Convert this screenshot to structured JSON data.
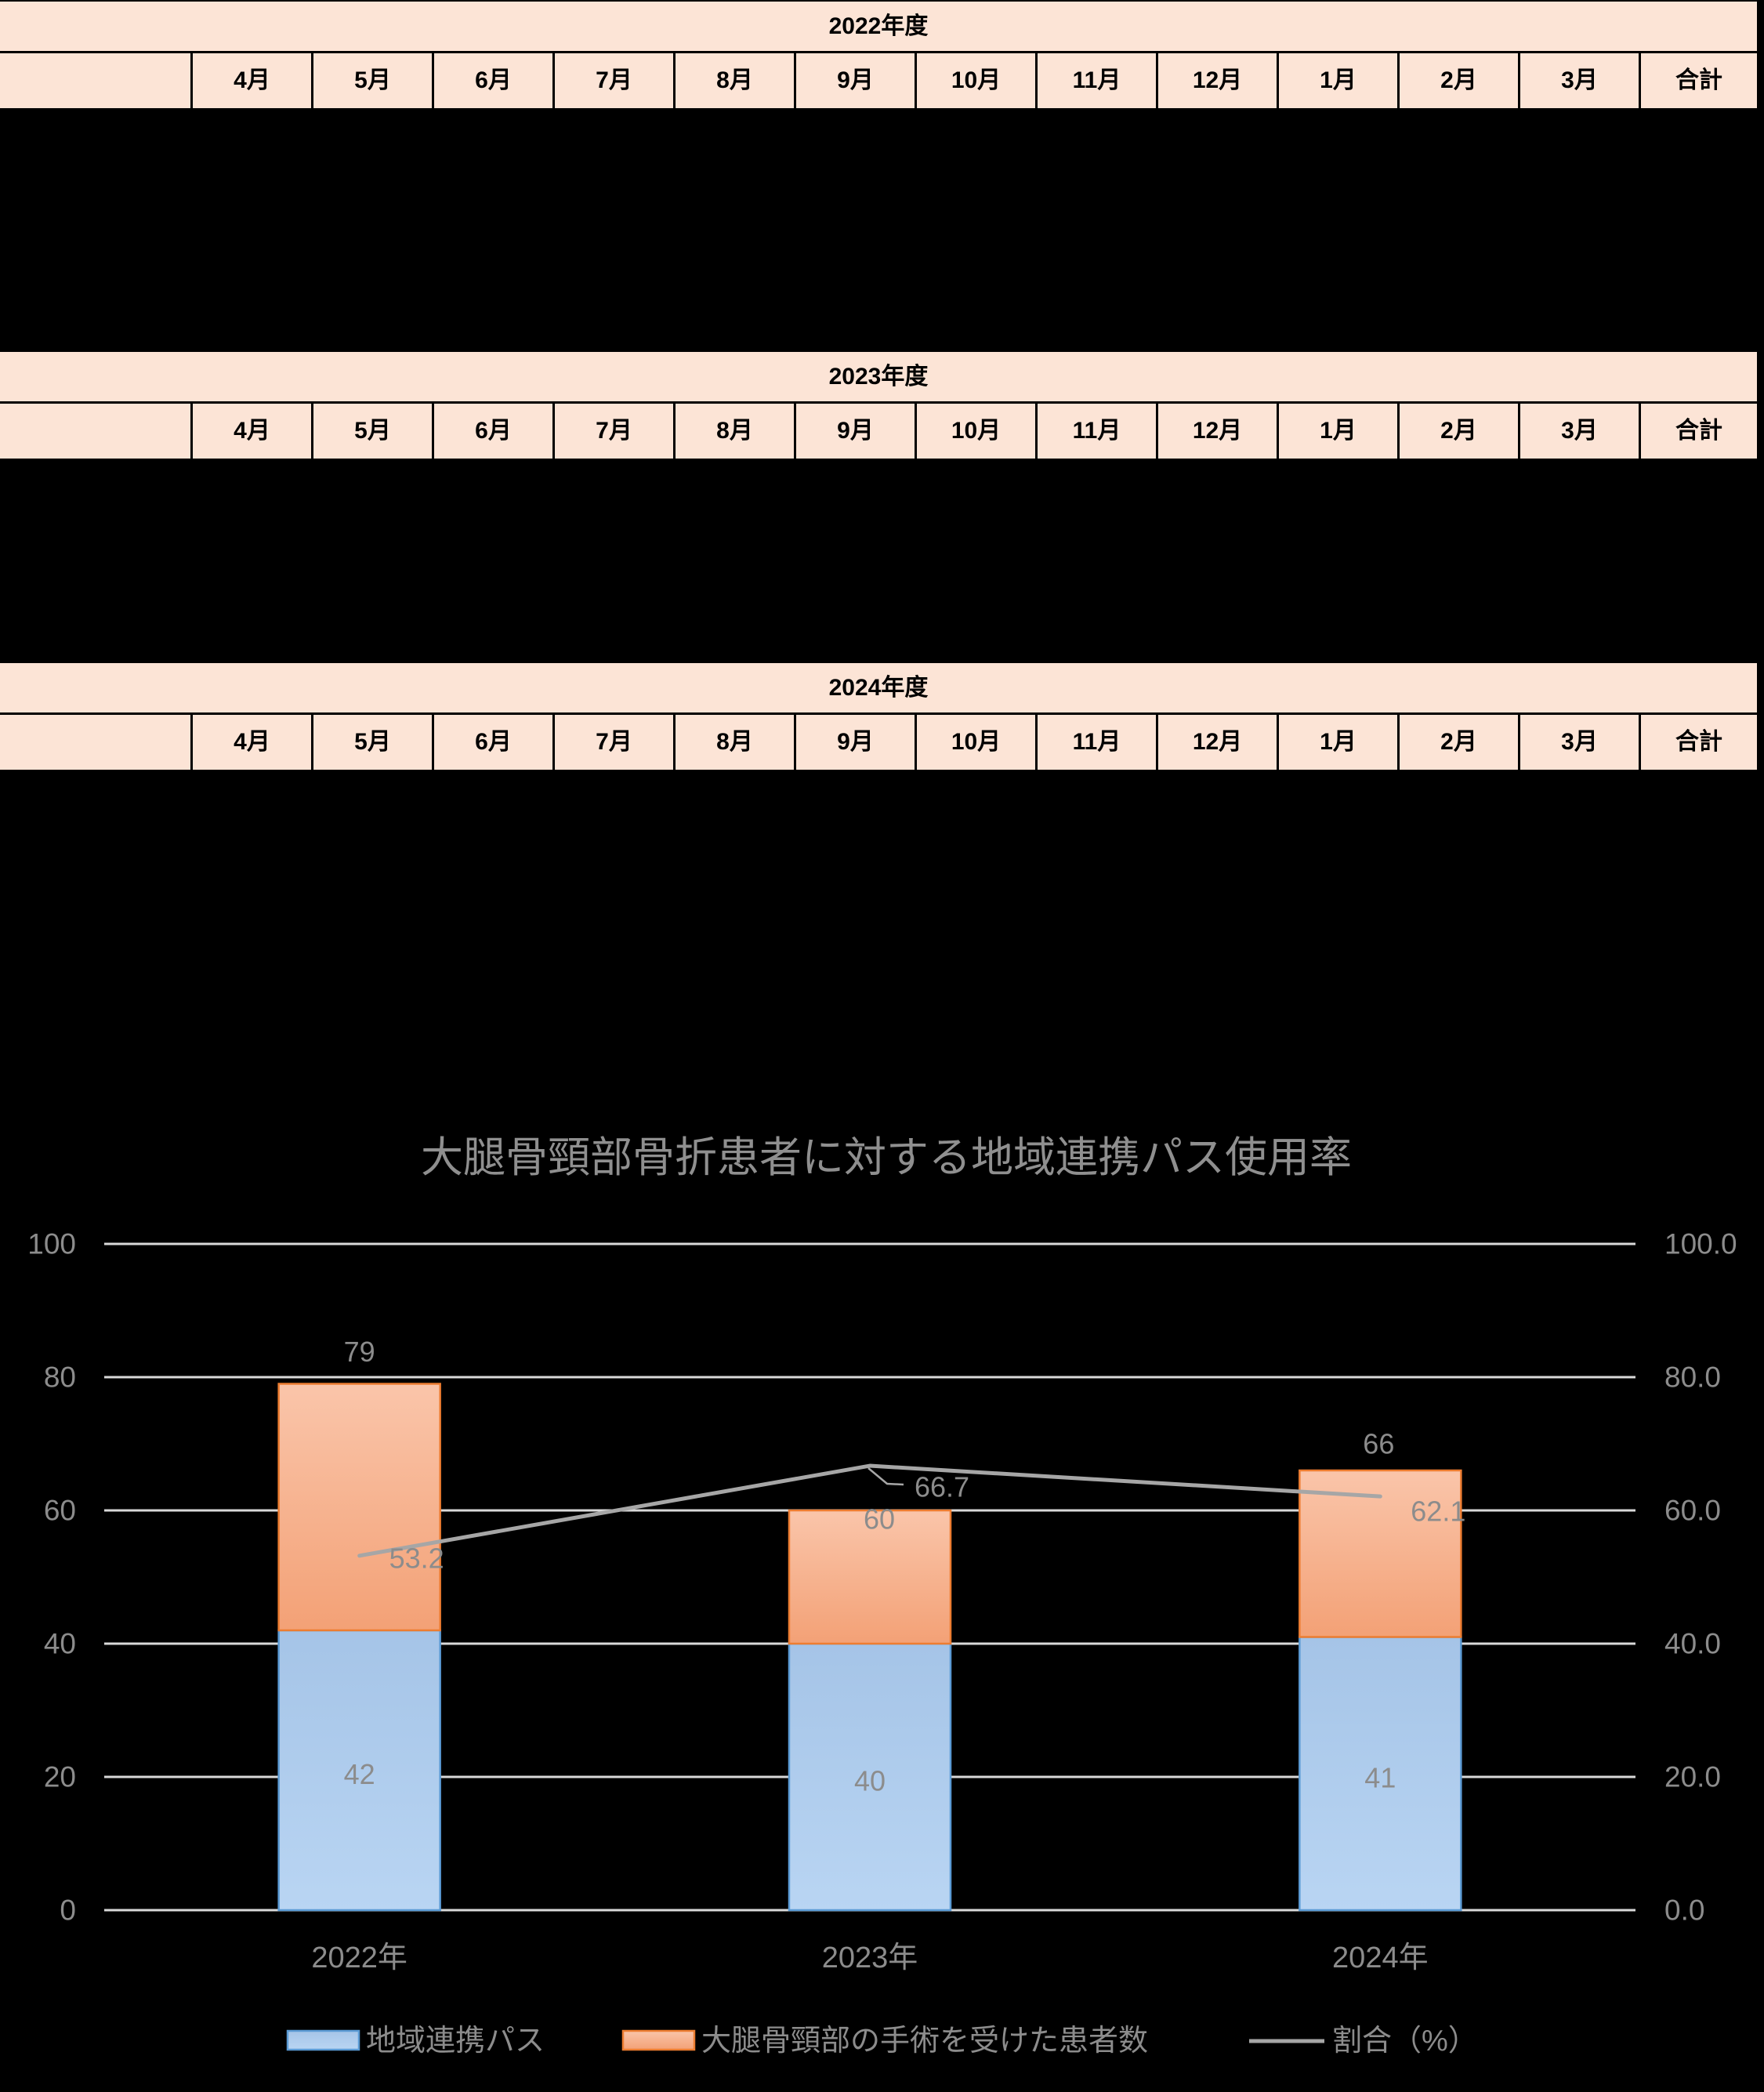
{
  "page": {
    "background": "#000000",
    "table_header_fill": "#FCE4D6",
    "table_border": "#000000",
    "table_text_color": "#000000"
  },
  "months": [
    "4月",
    "5月",
    "6月",
    "7月",
    "8月",
    "9月",
    "10月",
    "11月",
    "12月",
    "1月",
    "2月",
    "3月"
  ],
  "total_label": "合計",
  "tables": [
    {
      "title": "2022年度"
    },
    {
      "title": "2023年度"
    },
    {
      "title": "2024年度"
    }
  ],
  "chart_data": {
    "type": "bar",
    "subtype": "stacked-column-with-line",
    "title": "大腿骨頸部骨折患者に対する地域連携パス使用率",
    "categories": [
      "2022年",
      "2023年",
      "2024年"
    ],
    "series": [
      {
        "name": "地域連携パス",
        "type": "bar",
        "axis": "left",
        "values": [
          42,
          40,
          41
        ],
        "fill_top": "#A5C4E7",
        "fill_bottom": "#B9D5F3",
        "border": "#5B9BD5"
      },
      {
        "name": "大腿骨頸部の手術を受けた患者数",
        "type": "bar",
        "axis": "left",
        "values": [
          79,
          60,
          66
        ],
        "note": "stacked totals; orange segment spans from blue value to total",
        "fill_top": "#FAC5AA",
        "fill_bottom": "#F3A176",
        "border": "#ED7D31"
      },
      {
        "name": "割合（%）",
        "type": "line",
        "axis": "right",
        "values": [
          53.2,
          66.7,
          62.1
        ],
        "color": "#A6A6A6"
      }
    ],
    "left_axis": {
      "ticks": [
        "100",
        "80",
        "60",
        "40",
        "20",
        "0"
      ],
      "range": [
        0,
        100
      ]
    },
    "right_axis": {
      "ticks": [
        "100.0",
        "80.0",
        "60.0",
        "40.0",
        "20.0",
        "0.0"
      ],
      "range": [
        0,
        100
      ]
    },
    "ylim": [
      0,
      100
    ],
    "grid": true,
    "gridline_color": "#D9D9D9",
    "label_color": "#8C8C8C",
    "title_color": "#8F8F8F",
    "legend_position": "bottom"
  }
}
